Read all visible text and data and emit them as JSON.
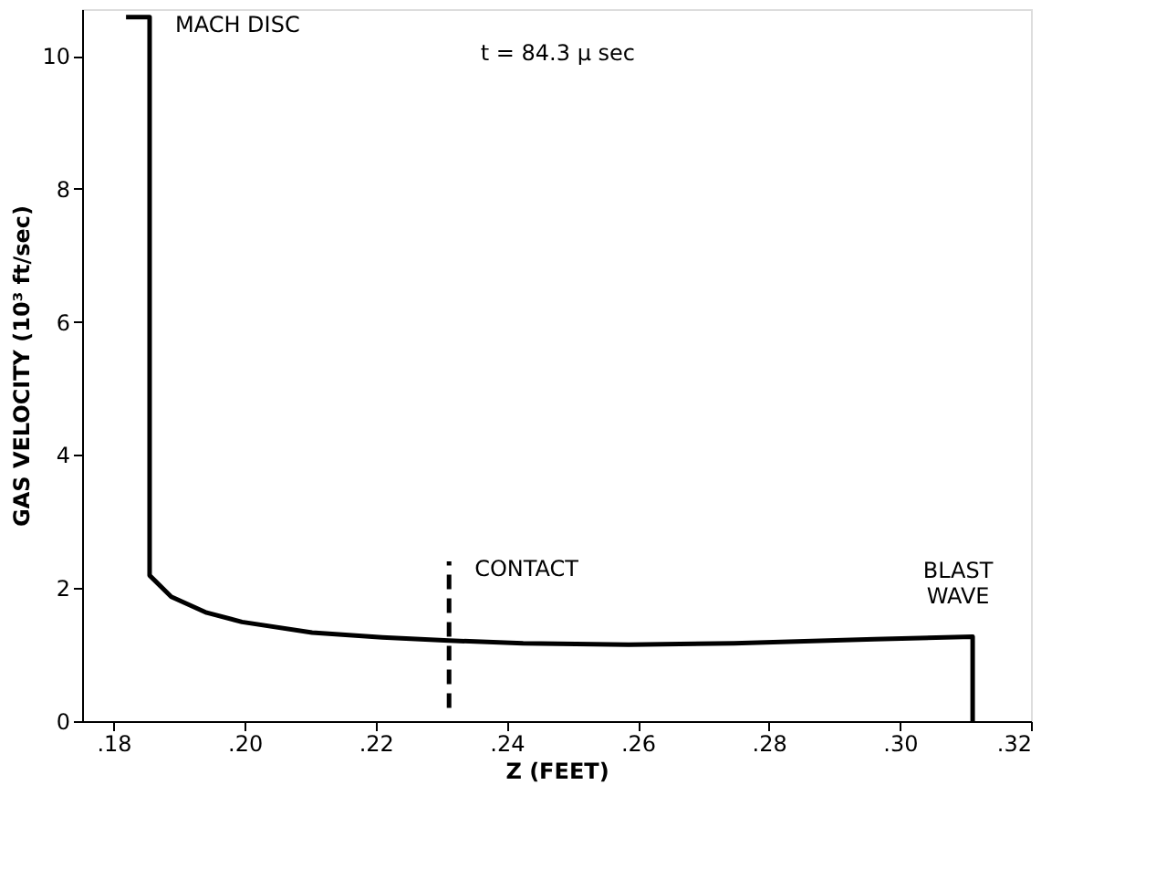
{
  "chart_data": {
    "type": "line",
    "xlabel": "Z (FEET)",
    "ylabel": "GAS VELOCITY (10³ ft/sec)",
    "xlim": [
      0.1752,
      0.32
    ],
    "ylim": [
      0,
      10.7
    ],
    "xticks": [
      {
        "value": 0.18,
        "label": ".18"
      },
      {
        "value": 0.2,
        "label": ".20"
      },
      {
        "value": 0.22,
        "label": ".22"
      },
      {
        "value": 0.24,
        "label": ".24"
      },
      {
        "value": 0.26,
        "label": ".26"
      },
      {
        "value": 0.28,
        "label": ".28"
      },
      {
        "value": 0.3,
        "label": ".30"
      },
      {
        "value": 0.32,
        "label": ".32"
      }
    ],
    "yticks": [
      0,
      2,
      4,
      6,
      8,
      10
    ],
    "grid": false,
    "marker": "none",
    "series": [
      {
        "color": "#000000",
        "line_style": "solid",
        "x": [
          0.1819,
          0.1855,
          0.1855,
          0.1888,
          0.1942,
          0.1996,
          0.2103,
          0.221,
          0.2312,
          0.2425,
          0.2586,
          0.2747,
          0.2961,
          0.3111,
          0.3111
        ],
        "values": [
          10.58,
          10.58,
          2.19,
          1.87,
          1.63,
          1.49,
          1.33,
          1.26,
          1.21,
          1.17,
          1.15,
          1.17,
          1.23,
          1.27,
          0
        ]
      },
      {
        "color": "#000000",
        "line_style": "dashed",
        "x": [
          0.2312,
          0.2312
        ],
        "values": [
          0.2,
          2.4
        ]
      }
    ],
    "annotations": [
      {
        "text": "MACH DISC",
        "x": 0.1855,
        "y": 10.58
      },
      "t = 84.3 μ sec",
      {
        "text": "CONTACT",
        "x": 0.2312,
        "y": 2.4
      },
      {
        "text": "BLAST\nWAVE",
        "x": 0.3111,
        "y": 1.27
      }
    ]
  }
}
